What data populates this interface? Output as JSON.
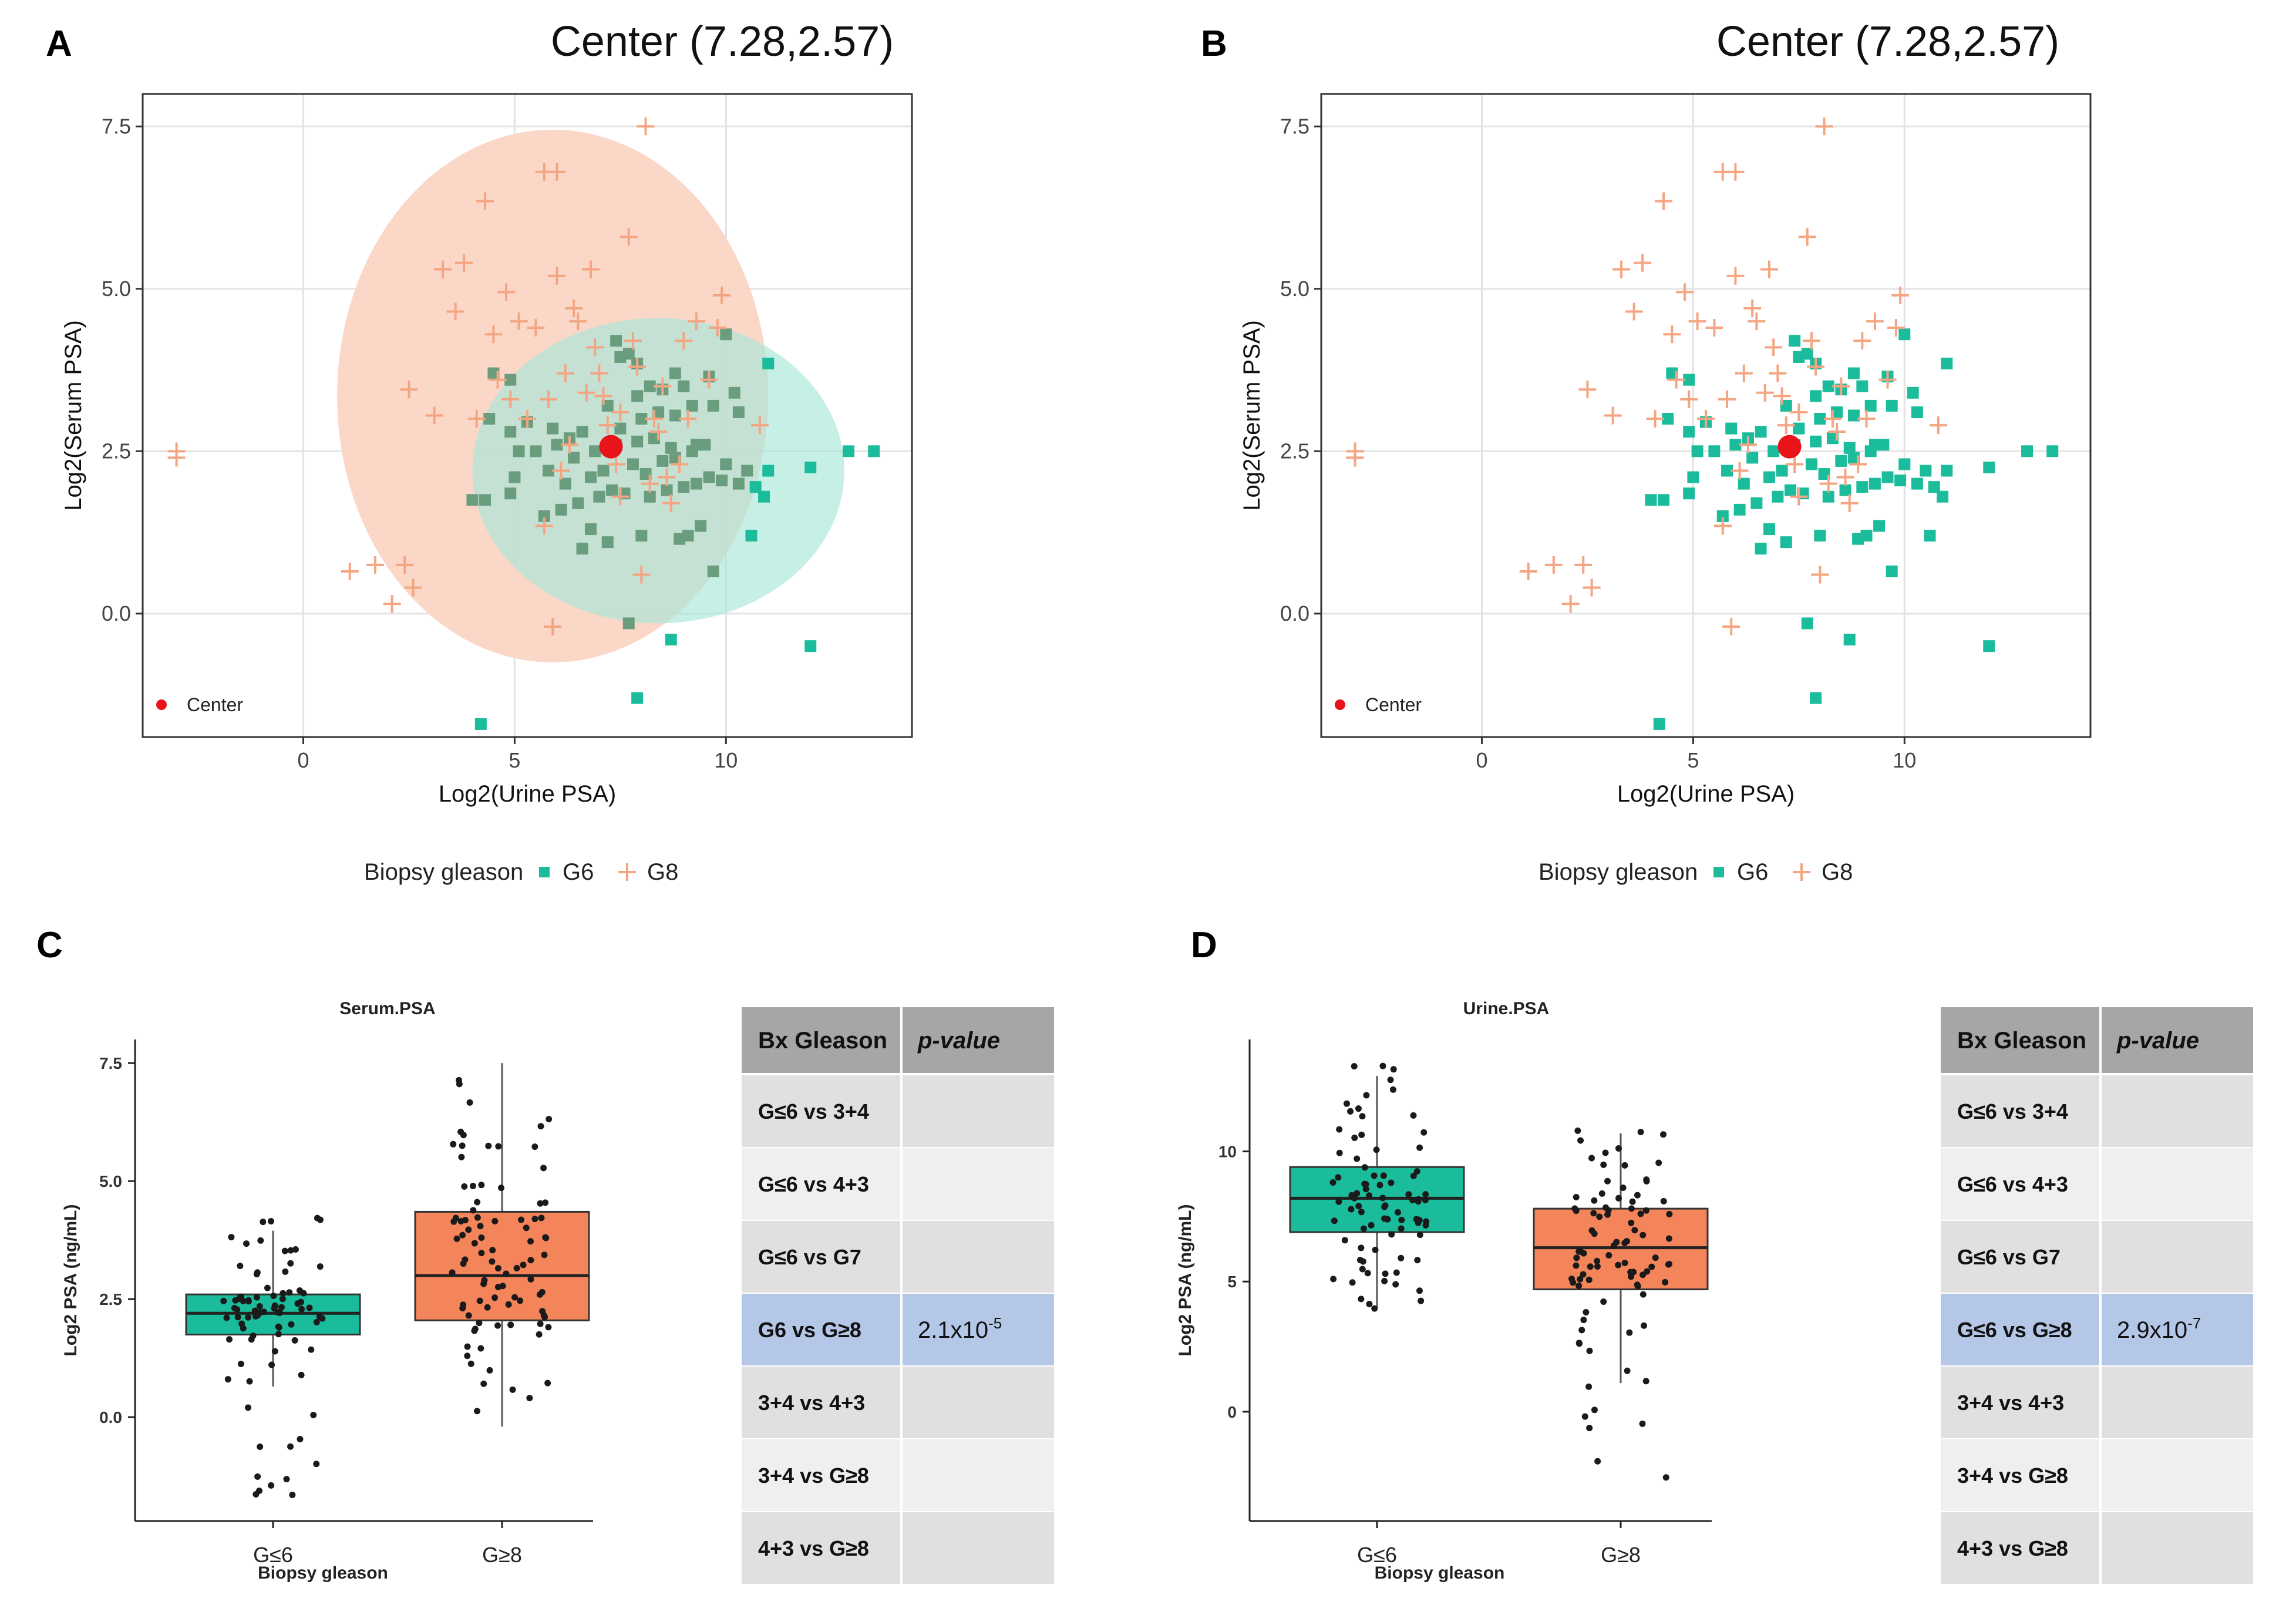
{
  "panel_letters": [
    "A",
    "B",
    "C",
    "D"
  ],
  "colors": {
    "g6": "#1abc9c",
    "g8": "#f4a582",
    "center": "#e8141a",
    "box_g6": "#1abc9c",
    "box_g8": "#f4845a",
    "ellipse_g8": "#fbd3c2",
    "ellipse_g6": "#a8e6d8",
    "table_header": "#a6a6a6",
    "table_row_dark": "#e0e0e0",
    "table_row_light": "#efefef",
    "table_highlight": "#b4c7e7"
  },
  "chart_data": [
    {
      "panel": "A",
      "type": "scatter",
      "title": "Center (7.28,2.57)",
      "xlabel": "Log2(Urine PSA)",
      "ylabel": "Log2(Serum PSA)",
      "xlim": [
        -3.8,
        14.4
      ],
      "ylim": [
        -1.9,
        8.0
      ],
      "xticks": [
        "0",
        "5",
        "10"
      ],
      "xtick_values": [
        0,
        5,
        10
      ],
      "yticks": [
        "0.0",
        "2.5",
        "5.0",
        "7.5"
      ],
      "ytick_values": [
        0,
        2.5,
        5,
        7.5
      ],
      "grid": true,
      "center": {
        "x": 7.28,
        "y": 2.57,
        "label": "Center"
      },
      "ellipses": [
        {
          "series": "G8",
          "cx": 5.9,
          "cy": 3.35,
          "rx": 5.1,
          "ry": 4.1
        },
        {
          "series": "G6",
          "cx": 8.4,
          "cy": 2.2,
          "rx": 4.4,
          "ry": 2.35
        }
      ],
      "legend": {
        "title": "Biopsy gleason",
        "entries": [
          "G6",
          "G8"
        ],
        "position": "bottom"
      },
      "series": [
        {
          "name": "G6",
          "marker": "square",
          "points": [
            [
              4.2,
              -1.7
            ],
            [
              7.9,
              -1.3
            ],
            [
              8.7,
              -0.4
            ],
            [
              7.7,
              -0.15
            ],
            [
              12.0,
              -0.5
            ],
            [
              9.7,
              0.65
            ],
            [
              10.6,
              1.2
            ],
            [
              6.6,
              1.0
            ],
            [
              7.2,
              1.1
            ],
            [
              8.0,
              1.2
            ],
            [
              8.9,
              1.15
            ],
            [
              9.1,
              1.2
            ],
            [
              9.4,
              1.35
            ],
            [
              4.0,
              1.75
            ],
            [
              4.3,
              1.75
            ],
            [
              4.9,
              1.85
            ],
            [
              5.7,
              1.5
            ],
            [
              6.1,
              1.6
            ],
            [
              6.5,
              1.7
            ],
            [
              7.0,
              1.8
            ],
            [
              7.3,
              1.9
            ],
            [
              7.6,
              1.85
            ],
            [
              8.2,
              1.8
            ],
            [
              8.6,
              1.9
            ],
            [
              9.0,
              1.95
            ],
            [
              9.3,
              2.0
            ],
            [
              9.6,
              2.1
            ],
            [
              9.9,
              2.05
            ],
            [
              10.3,
              2.0
            ],
            [
              10.7,
              1.95
            ],
            [
              10.9,
              1.8
            ],
            [
              11.0,
              2.2
            ],
            [
              5.0,
              2.1
            ],
            [
              5.8,
              2.2
            ],
            [
              6.2,
              2.0
            ],
            [
              6.8,
              2.1
            ],
            [
              7.1,
              2.2
            ],
            [
              7.8,
              2.3
            ],
            [
              8.1,
              2.15
            ],
            [
              8.5,
              2.35
            ],
            [
              8.8,
              2.4
            ],
            [
              9.2,
              2.5
            ],
            [
              9.5,
              2.6
            ],
            [
              10.0,
              2.3
            ],
            [
              10.5,
              2.2
            ],
            [
              12.0,
              2.25
            ],
            [
              12.9,
              2.5
            ],
            [
              13.5,
              2.5
            ],
            [
              5.1,
              2.5
            ],
            [
              5.5,
              2.5
            ],
            [
              6.0,
              2.6
            ],
            [
              6.4,
              2.4
            ],
            [
              6.9,
              2.5
            ],
            [
              7.4,
              2.6
            ],
            [
              7.9,
              2.65
            ],
            [
              8.3,
              2.7
            ],
            [
              8.7,
              2.55
            ],
            [
              9.3,
              2.6
            ],
            [
              4.9,
              2.8
            ],
            [
              5.3,
              2.95
            ],
            [
              5.9,
              2.85
            ],
            [
              6.3,
              2.7
            ],
            [
              6.6,
              2.8
            ],
            [
              7.5,
              2.85
            ],
            [
              8.0,
              3.0
            ],
            [
              8.4,
              3.1
            ],
            [
              8.8,
              3.05
            ],
            [
              9.2,
              3.2
            ],
            [
              4.4,
              3.0
            ],
            [
              4.9,
              3.6
            ],
            [
              7.2,
              3.2
            ],
            [
              7.9,
              3.35
            ],
            [
              8.2,
              3.5
            ],
            [
              8.5,
              3.45
            ],
            [
              9.0,
              3.5
            ],
            [
              9.6,
              3.65
            ],
            [
              10.2,
              3.4
            ],
            [
              10.3,
              3.1
            ],
            [
              4.5,
              3.7
            ],
            [
              7.5,
              3.95
            ],
            [
              7.7,
              4.0
            ],
            [
              7.9,
              3.85
            ],
            [
              8.8,
              3.7
            ],
            [
              10.0,
              4.3
            ],
            [
              11.0,
              3.85
            ],
            [
              7.4,
              4.2
            ],
            [
              9.7,
              3.2
            ],
            [
              6.8,
              1.3
            ]
          ]
        },
        {
          "name": "G8",
          "marker": "plus",
          "points": [
            [
              -3.0,
              2.4
            ],
            [
              -3.0,
              2.5
            ],
            [
              1.1,
              0.65
            ],
            [
              1.7,
              0.75
            ],
            [
              2.1,
              0.15
            ],
            [
              2.4,
              0.75
            ],
            [
              2.6,
              0.4
            ],
            [
              2.5,
              3.45
            ],
            [
              3.1,
              3.05
            ],
            [
              3.3,
              5.3
            ],
            [
              3.6,
              4.65
            ],
            [
              3.8,
              5.4
            ],
            [
              4.1,
              3.0
            ],
            [
              4.3,
              6.35
            ],
            [
              4.5,
              4.3
            ],
            [
              4.6,
              3.6
            ],
            [
              4.8,
              4.95
            ],
            [
              4.9,
              3.3
            ],
            [
              5.1,
              4.5
            ],
            [
              5.3,
              3.0
            ],
            [
              5.5,
              4.4
            ],
            [
              5.7,
              1.35
            ],
            [
              5.8,
              3.3
            ],
            [
              5.7,
              6.8
            ],
            [
              6.0,
              6.8
            ],
            [
              5.9,
              -0.2
            ],
            [
              6.0,
              5.2
            ],
            [
              6.2,
              3.7
            ],
            [
              6.3,
              2.6
            ],
            [
              6.4,
              4.7
            ],
            [
              6.5,
              4.5
            ],
            [
              6.7,
              3.4
            ],
            [
              6.8,
              5.3
            ],
            [
              6.9,
              4.1
            ],
            [
              7.1,
              3.35
            ],
            [
              7.2,
              2.9
            ],
            [
              7.4,
              2.3
            ],
            [
              7.5,
              3.1
            ],
            [
              7.7,
              5.8
            ],
            [
              7.8,
              4.2
            ],
            [
              7.9,
              3.8
            ],
            [
              8.0,
              0.6
            ],
            [
              8.2,
              2.0
            ],
            [
              8.3,
              3.0
            ],
            [
              8.4,
              2.8
            ],
            [
              8.5,
              3.5
            ],
            [
              8.7,
              1.7
            ],
            [
              8.9,
              2.3
            ],
            [
              9.0,
              4.2
            ],
            [
              9.1,
              3.0
            ],
            [
              9.3,
              4.5
            ],
            [
              9.6,
              3.6
            ],
            [
              9.8,
              4.4
            ],
            [
              9.9,
              4.9
            ],
            [
              8.1,
              7.5
            ],
            [
              7.5,
              1.8
            ],
            [
              8.6,
              2.1
            ],
            [
              10.8,
              2.9
            ],
            [
              6.1,
              2.2
            ],
            [
              7.0,
              3.7
            ]
          ]
        }
      ]
    },
    {
      "panel": "B",
      "type": "scatter",
      "title": "Center (7.28,2.57)",
      "xlabel": "Log2(Urine PSA)",
      "ylabel": "Log2(Serum PSA)",
      "xlim": [
        -3.8,
        14.4
      ],
      "ylim": [
        -1.9,
        8.0
      ],
      "xticks": [
        "0",
        "5",
        "10"
      ],
      "xtick_values": [
        0,
        5,
        10
      ],
      "yticks": [
        "0.0",
        "2.5",
        "5.0",
        "7.5"
      ],
      "ytick_values": [
        0,
        2.5,
        5,
        7.5
      ],
      "grid": true,
      "center": {
        "x": 7.28,
        "y": 2.57,
        "label": "Center"
      },
      "ellipses": [],
      "legend": {
        "title": "Biopsy gleason",
        "entries": [
          "G6",
          "G8"
        ],
        "position": "bottom"
      }
    },
    {
      "panel": "C",
      "type": "box",
      "title": "Serum.PSA",
      "xlabel": "Biopsy gleason",
      "ylabel": "Log2 PSA (ng/mL)",
      "categories": [
        "G≤6",
        "G≥8"
      ],
      "ylim": [
        -2.2,
        8.0
      ],
      "yticks": [
        "0.0",
        "2.5",
        "5.0",
        "7.5"
      ],
      "ytick_values": [
        0,
        2.5,
        5,
        7.5
      ],
      "boxes": [
        {
          "category": "G≤6",
          "min": 0.65,
          "q1": 1.75,
          "median": 2.2,
          "q3": 2.6,
          "max": 3.95,
          "points_low": -1.7,
          "points_high": 4.3,
          "n": 85
        },
        {
          "category": "G≥8",
          "min": -0.2,
          "q1": 2.05,
          "median": 3.0,
          "q3": 4.35,
          "max": 7.5,
          "points_low": -0.2,
          "points_high": 7.5,
          "n": 90
        }
      ]
    },
    {
      "panel": "D",
      "type": "box",
      "title": "Urine.PSA",
      "xlabel": "Biopsy gleason",
      "ylabel": "Log2 PSA (ng/mL)",
      "categories": [
        "G≤6",
        "G≥8"
      ],
      "ylim": [
        -4.2,
        14.3
      ],
      "yticks": [
        "0",
        "5",
        "10"
      ],
      "ytick_values": [
        0,
        5,
        10
      ],
      "boxes": [
        {
          "category": "G≤6",
          "min": 4.0,
          "q1": 6.9,
          "median": 8.2,
          "q3": 9.4,
          "max": 12.9,
          "points_low": 3.9,
          "points_high": 13.5,
          "n": 85
        },
        {
          "category": "G≥8",
          "min": 1.1,
          "q1": 4.7,
          "median": 6.3,
          "q3": 7.8,
          "max": 10.7,
          "points_low": -3.0,
          "points_high": 10.8,
          "n": 90
        }
      ]
    }
  ],
  "tables": {
    "C": {
      "header": [
        "Bx Gleason",
        "p-value"
      ],
      "rows": [
        {
          "comparison": "G≤6 vs 3+4",
          "base": "",
          "exp": ""
        },
        {
          "comparison": "G≤6 vs 4+3",
          "base": "",
          "exp": ""
        },
        {
          "comparison": "G≤6 vs G7",
          "base": "",
          "exp": ""
        },
        {
          "comparison": "G6 vs G≥8",
          "base": "2.1x10",
          "exp": "-5"
        },
        {
          "comparison": "3+4 vs 4+3",
          "base": "",
          "exp": ""
        },
        {
          "comparison": "3+4 vs G≥8",
          "base": "",
          "exp": ""
        },
        {
          "comparison": "4+3 vs G≥8",
          "base": "",
          "exp": ""
        }
      ],
      "highlight_row": 3
    },
    "D": {
      "header": [
        "Bx Gleason",
        "p-value"
      ],
      "rows": [
        {
          "comparison": "G≤6 vs 3+4",
          "base": "",
          "exp": ""
        },
        {
          "comparison": "G≤6 vs 4+3",
          "base": "",
          "exp": ""
        },
        {
          "comparison": "G≤6 vs G7",
          "base": "",
          "exp": ""
        },
        {
          "comparison": "G≤6 vs G≥8",
          "base": "2.9x10",
          "exp": "-7"
        },
        {
          "comparison": "3+4 vs 4+3",
          "base": "",
          "exp": ""
        },
        {
          "comparison": "3+4 vs G≥8",
          "base": "",
          "exp": ""
        },
        {
          "comparison": "4+3 vs G≥8",
          "base": "",
          "exp": ""
        }
      ],
      "highlight_row": 3
    }
  }
}
